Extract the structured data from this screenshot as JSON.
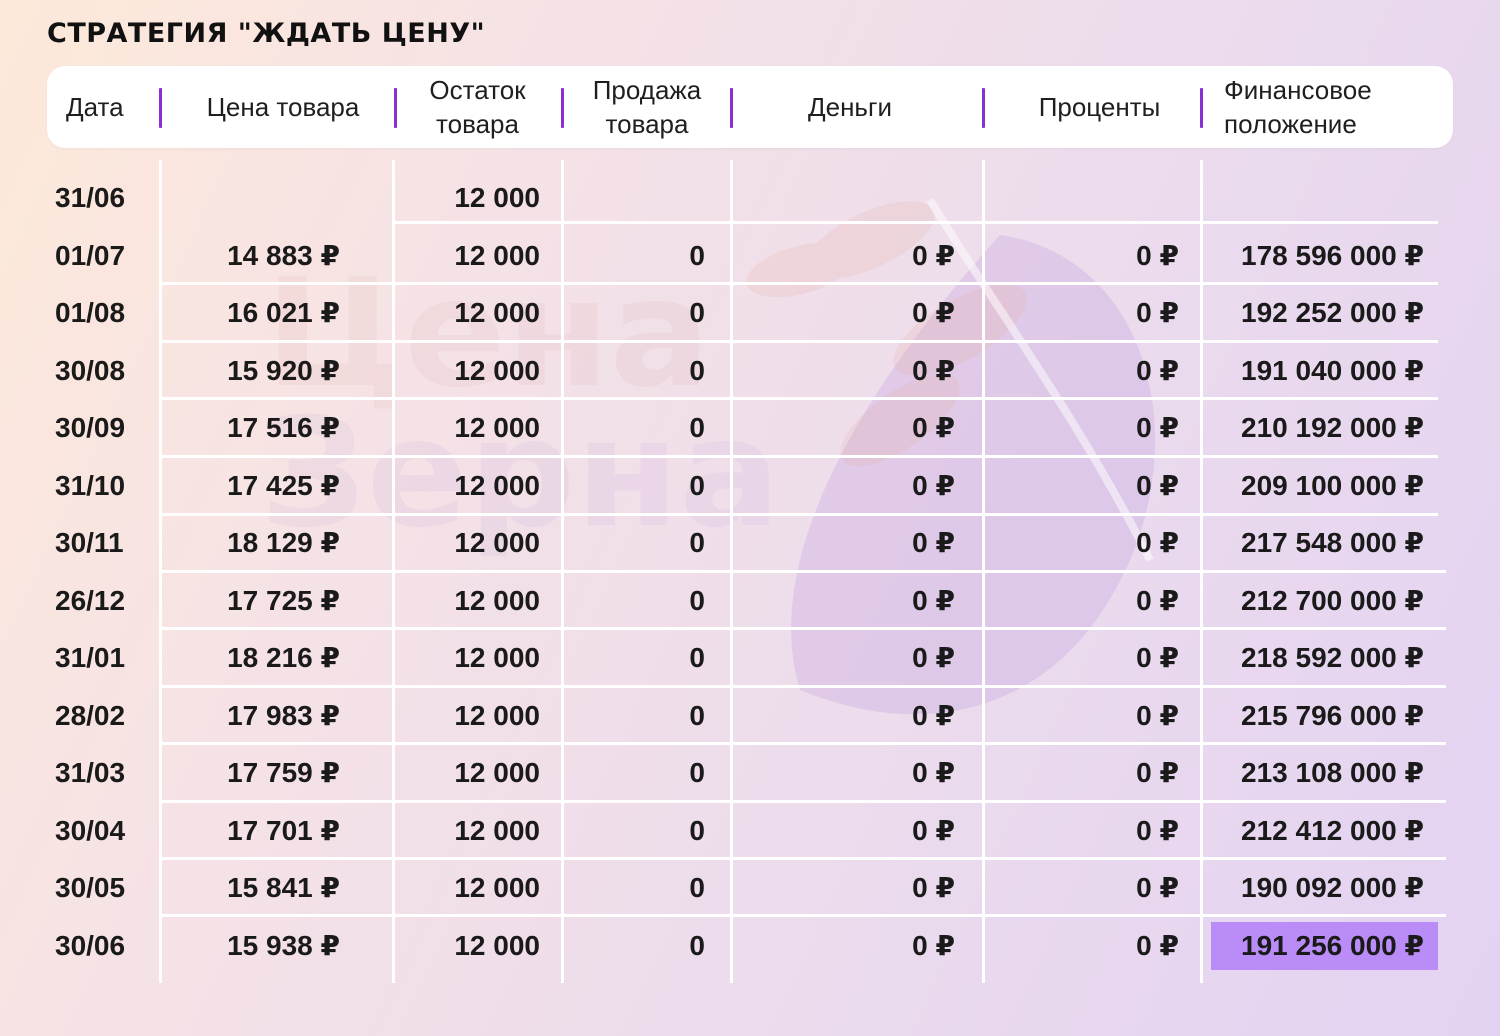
{
  "title": "СТРАТЕГИЯ \"ЖДАТЬ ЦЕНУ\"",
  "watermark": {
    "line1": "Цена",
    "line2": "Зерна"
  },
  "colors": {
    "separator": "#8b2fd1",
    "highlight": "#b98cf7",
    "gridlines": "#ffffff"
  },
  "headers": {
    "date": "Дата",
    "price": "Цена товара",
    "stock": "Остаток\nтовара",
    "sale": "Продажа\nтовара",
    "money": "Деньги",
    "interest": "Проценты",
    "financial": "Финансовое\nположение"
  },
  "rows": [
    {
      "date": "31/06",
      "price": "",
      "stock": "12 000",
      "sale": "",
      "money": "",
      "interest": "",
      "financial": ""
    },
    {
      "date": "01/07",
      "price": "14 883 ₽",
      "stock": "12 000",
      "sale": "0",
      "money": "0 ₽",
      "interest": "0 ₽",
      "financial": "178 596 000 ₽"
    },
    {
      "date": "01/08",
      "price": "16 021 ₽",
      "stock": "12 000",
      "sale": "0",
      "money": "0 ₽",
      "interest": "0 ₽",
      "financial": "192 252 000 ₽"
    },
    {
      "date": "30/08",
      "price": "15 920 ₽",
      "stock": "12 000",
      "sale": "0",
      "money": "0 ₽",
      "interest": "0 ₽",
      "financial": "191 040 000 ₽"
    },
    {
      "date": "30/09",
      "price": "17 516 ₽",
      "stock": "12 000",
      "sale": "0",
      "money": "0 ₽",
      "interest": "0 ₽",
      "financial": "210 192 000 ₽"
    },
    {
      "date": "31/10",
      "price": "17 425 ₽",
      "stock": "12 000",
      "sale": "0",
      "money": "0 ₽",
      "interest": "0 ₽",
      "financial": "209 100 000 ₽"
    },
    {
      "date": "30/11",
      "price": "18 129 ₽",
      "stock": "12 000",
      "sale": "0",
      "money": "0 ₽",
      "interest": "0 ₽",
      "financial": "217 548 000 ₽"
    },
    {
      "date": "26/12",
      "price": "17 725 ₽",
      "stock": "12 000",
      "sale": "0",
      "money": "0 ₽",
      "interest": "0 ₽",
      "financial": "212 700 000 ₽"
    },
    {
      "date": "31/01",
      "price": "18 216 ₽",
      "stock": "12 000",
      "sale": "0",
      "money": "0 ₽",
      "interest": "0 ₽",
      "financial": "218 592 000 ₽"
    },
    {
      "date": "28/02",
      "price": "17 983 ₽",
      "stock": "12 000",
      "sale": "0",
      "money": "0 ₽",
      "interest": "0 ₽",
      "financial": "215 796 000 ₽"
    },
    {
      "date": "31/03",
      "price": "17 759 ₽",
      "stock": "12 000",
      "sale": "0",
      "money": "0 ₽",
      "interest": "0 ₽",
      "financial": "213 108 000 ₽"
    },
    {
      "date": "30/04",
      "price": "17 701 ₽",
      "stock": "12 000",
      "sale": "0",
      "money": "0 ₽",
      "interest": "0 ₽",
      "financial": "212 412 000 ₽"
    },
    {
      "date": "30/05",
      "price": "15 841 ₽",
      "stock": "12 000",
      "sale": "0",
      "money": "0 ₽",
      "interest": "0 ₽",
      "financial": "190 092 000 ₽"
    },
    {
      "date": "30/06",
      "price": "15 938 ₽",
      "stock": "12 000",
      "sale": "0",
      "money": "0 ₽",
      "interest": "0 ₽",
      "financial": "191 256 000 ₽"
    }
  ]
}
